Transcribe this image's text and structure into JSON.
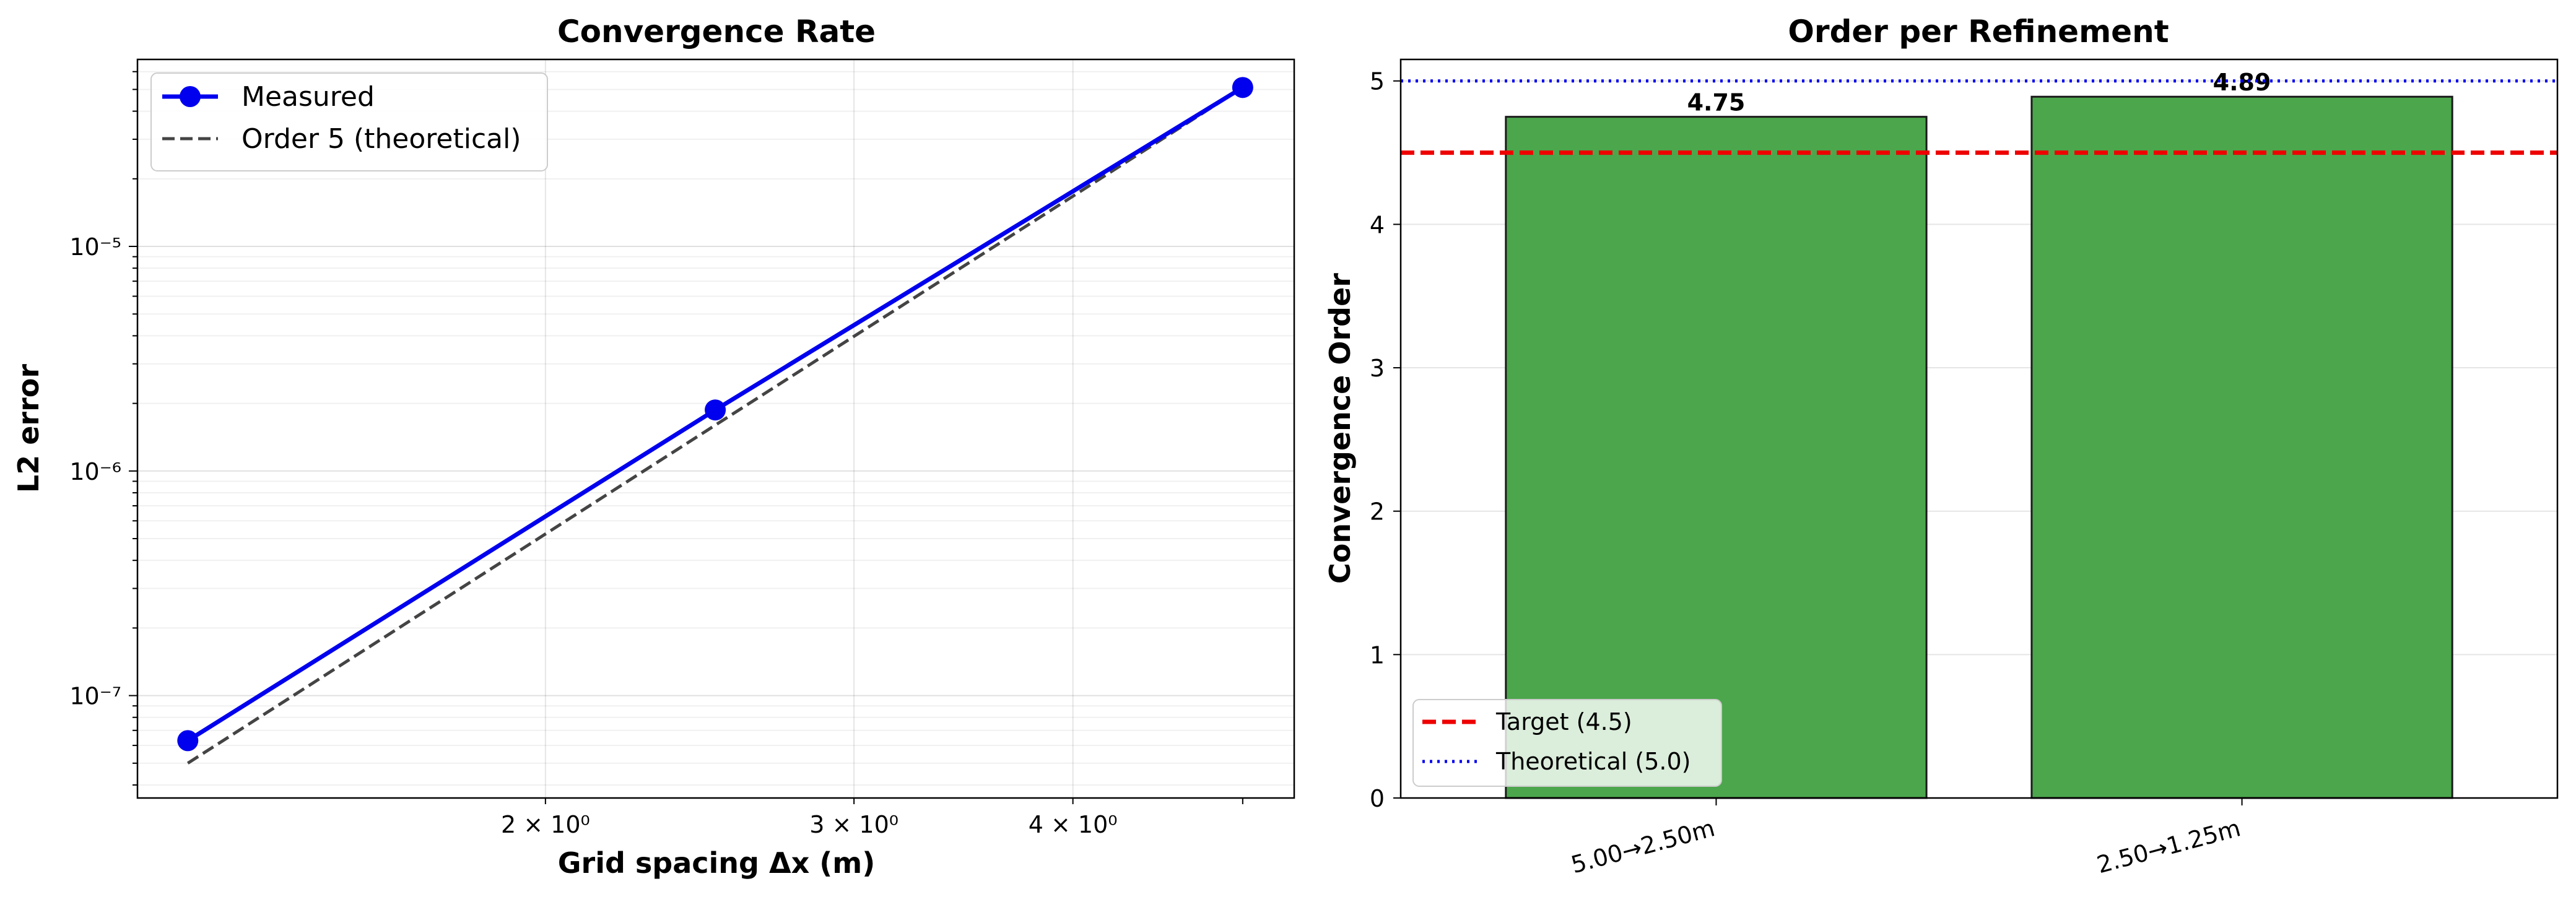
{
  "chart_data": [
    {
      "type": "line",
      "title": "Convergence Rate",
      "xlabel": "Grid spacing Δx (m)",
      "ylabel": "L2 error",
      "xscale": "log",
      "yscale": "log",
      "xlim": [
        1.17,
        5.35
      ],
      "ylim": [
        3.5e-08,
        6.8e-05
      ],
      "grid": true,
      "legend_position": "top-left",
      "xticks": [
        {
          "value": 2,
          "label": "2 × 10⁰"
        },
        {
          "value": 3,
          "label": "3 × 10⁰"
        },
        {
          "value": 4,
          "label": "4 × 10⁰"
        }
      ],
      "yticks": [
        {
          "value": 1e-07,
          "label": "10⁻⁷"
        },
        {
          "value": 1e-06,
          "label": "10⁻⁶"
        },
        {
          "value": 1e-05,
          "label": "10⁻⁵"
        }
      ],
      "series": [
        {
          "name": "Measured",
          "x": [
            1.25,
            2.5,
            5.0
          ],
          "y": [
            6.3e-08,
            1.87e-06,
            5.1e-05
          ],
          "color": "#0000ee",
          "style": "solid-marker"
        },
        {
          "name": "Order 5 (theoretical)",
          "x": [
            1.25,
            2.5,
            5.0
          ],
          "y": [
            5e-08,
            1.6e-06,
            5.1e-05
          ],
          "color": "#444444",
          "style": "dashed"
        }
      ]
    },
    {
      "type": "bar",
      "title": "Order per Refinement",
      "xlabel": "",
      "ylabel": "Convergence Order",
      "categories": [
        "5.00→2.50m",
        "2.50→1.25m"
      ],
      "values": [
        4.75,
        4.89
      ],
      "data_labels": [
        "4.75",
        "4.89"
      ],
      "ylim": [
        0,
        5.15
      ],
      "yticks": [
        0,
        1,
        2,
        3,
        4,
        5
      ],
      "grid": true,
      "bar_color": "#4ca64c",
      "legend_position": "bottom-left",
      "reference_lines": [
        {
          "name": "Target (4.5)",
          "value": 4.5,
          "color": "#ee0000",
          "style": "dashed"
        },
        {
          "name": "Theoretical (5.0)",
          "value": 5.0,
          "color": "#0000ee",
          "style": "dotted"
        }
      ]
    }
  ]
}
